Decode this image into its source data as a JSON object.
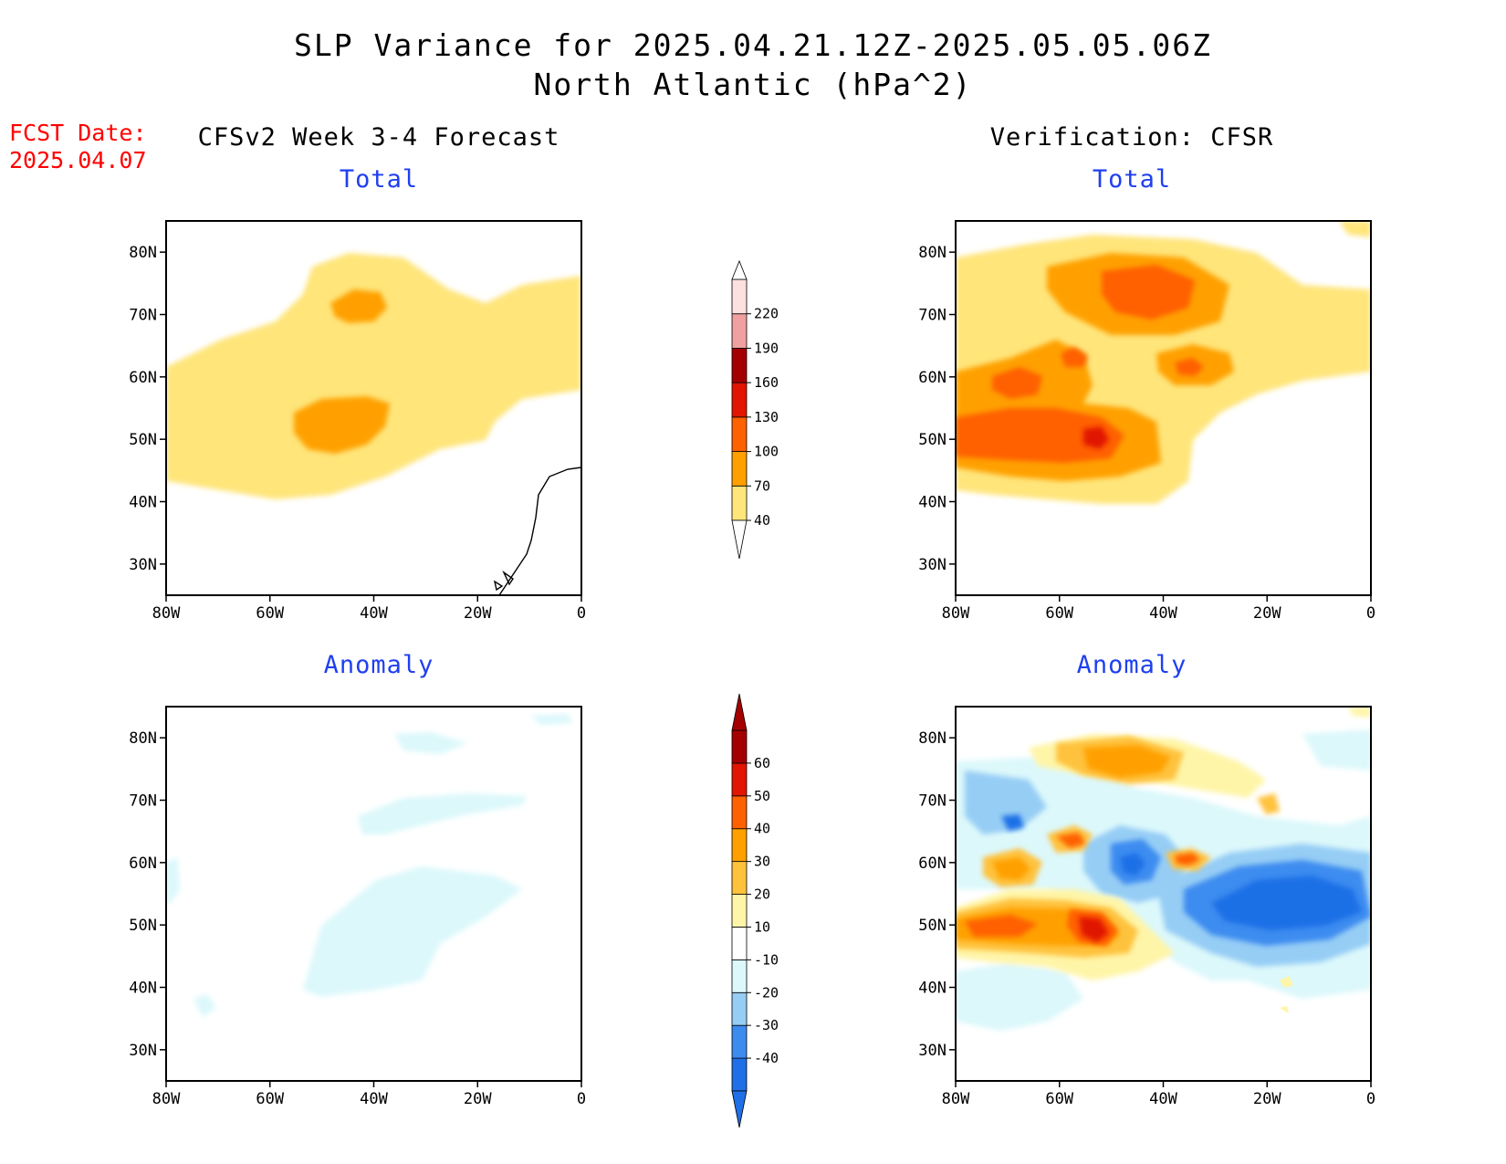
{
  "header": {
    "title_line1": "SLP Variance for 2025.04.21.12Z-2025.05.05.06Z",
    "title_line2": "North Atlantic (hPa^2)"
  },
  "fcst": {
    "label": "FCST Date:",
    "date": "2025.04.07"
  },
  "columns": {
    "left": "CFSv2 Week 3-4 Forecast",
    "right": "Verification: CFSR"
  },
  "panel_titles": {
    "total": "Total",
    "anomaly": "Anomaly"
  },
  "axes": {
    "lat_labels": [
      "80N",
      "70N",
      "60N",
      "50N",
      "40N",
      "30N"
    ],
    "lon_labels": [
      "80W",
      "60W",
      "40W",
      "20W",
      "0"
    ],
    "lat_values": [
      80,
      70,
      60,
      50,
      40,
      30
    ],
    "lon_values": [
      -80,
      -60,
      -40,
      -20,
      0
    ],
    "lat_range": [
      25,
      85
    ],
    "lon_range": [
      -80,
      0
    ]
  },
  "colors": {
    "total": [
      "#ffe57a",
      "#ffa000",
      "#ff6000",
      "#e11500",
      "#a50000",
      "#f0a0a0",
      "#fde0e0"
    ],
    "anomaly": [
      "#1f6fe6",
      "#3c8cf0",
      "#96cdf5",
      "#dcf8fb",
      "#ffffff",
      "#fff5a8",
      "#ffc23c",
      "#ffa000",
      "#ff6000",
      "#e11500",
      "#a50000"
    ]
  },
  "colorbars": {
    "total": {
      "levels": [
        "40",
        "70",
        "100",
        "130",
        "160",
        "190",
        "220"
      ]
    },
    "anomaly": {
      "levels": [
        "-40",
        "-30",
        "-20",
        "-10",
        "10",
        "20",
        "30",
        "40",
        "50",
        "60"
      ]
    }
  }
}
